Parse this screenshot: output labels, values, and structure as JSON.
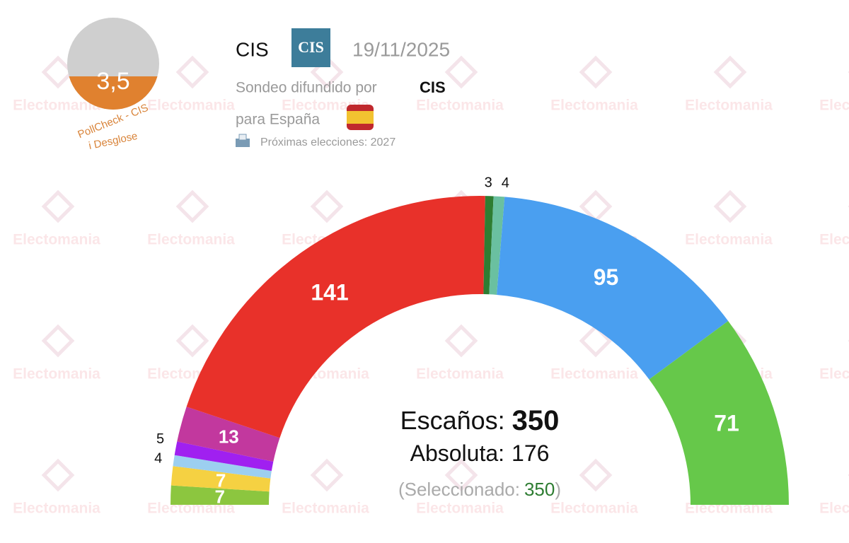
{
  "header": {
    "score": "3,5",
    "badge_line1": "PollCheck - CIS",
    "badge_line2": "i Desglose",
    "pollster": "CIS",
    "logo": "CIS",
    "date": "19/11/2025",
    "spread_by": "Sondeo difundido por",
    "spread_by_name": "CIS",
    "for_country": "para España",
    "next_elections": "Próximas elecciones: 2027"
  },
  "watermark": "Electomania",
  "chart_data": {
    "type": "parliament",
    "values": [
      7,
      7,
      4,
      5,
      13,
      141,
      3,
      4,
      95,
      71
    ],
    "colors": [
      "#8cc63f",
      "#f5d142",
      "#9ccff0",
      "#a020f0",
      "#c2389e",
      "#e8312a",
      "#2e7d32",
      "#6ac0a0",
      "#4a9ff0",
      "#66c84a"
    ],
    "seats_label": "Escaños:",
    "seats_total": 350,
    "majority_label": "Absoluta:",
    "majority": 176,
    "selected_label": "(Seleccionado:",
    "selected": 350,
    "selected_close": ")"
  }
}
